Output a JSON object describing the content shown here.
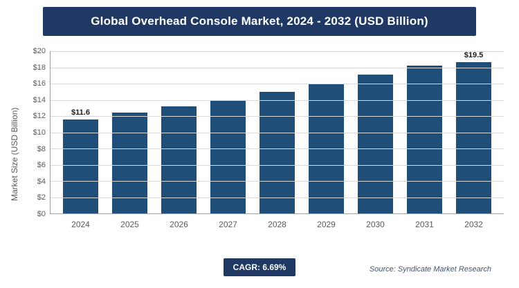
{
  "title": "Global Overhead Console Market, 2024 - 2032 (USD Billion)",
  "footer": {
    "cagr_label": "CAGR: 6.69%",
    "source": "Source: Syndicate Market Research"
  },
  "chart_data": {
    "type": "bar",
    "title": "Global Overhead Console Market, 2024 - 2032 (USD Billion)",
    "categories": [
      "2024",
      "2025",
      "2026",
      "2027",
      "2028",
      "2029",
      "2030",
      "2031",
      "2032"
    ],
    "values": [
      11.6,
      12.4,
      13.2,
      14.0,
      15.0,
      16.0,
      17.1,
      18.2,
      19.5
    ],
    "data_labels": {
      "0": "$11.6",
      "8": "$19.5"
    },
    "xlabel": "",
    "ylabel": "Market Size (USD Billion)",
    "ylim": [
      0,
      20
    ],
    "ytick_step": 2,
    "ytick_prefix": "$",
    "grid": true,
    "legend": "none",
    "bar_color": "#1f4e79",
    "banner_color": "#1f3864"
  }
}
